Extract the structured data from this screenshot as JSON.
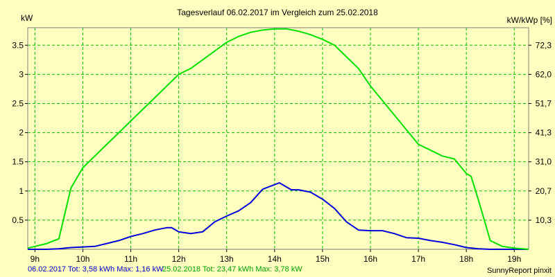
{
  "chart_data": {
    "type": "line",
    "title": "Tagesverlauf 06.02.2017 im Vergleich zum 25.02.2018",
    "ylabel_left": "kW",
    "ylabel_right": "kW/kWp [%]",
    "ylim": [
      0,
      3.8
    ],
    "xlim": [
      8.85,
      19.3
    ],
    "x_ticks": [
      {
        "value": 9,
        "label": "9h"
      },
      {
        "value": 10,
        "label": "10h"
      },
      {
        "value": 11,
        "label": "11h"
      },
      {
        "value": 12,
        "label": "12h"
      },
      {
        "value": 13,
        "label": "13h"
      },
      {
        "value": 14,
        "label": "14h"
      },
      {
        "value": 15,
        "label": "15h"
      },
      {
        "value": 16,
        "label": "16h"
      },
      {
        "value": 17,
        "label": "17h"
      },
      {
        "value": 18,
        "label": "18h"
      },
      {
        "value": 19,
        "label": "19h"
      }
    ],
    "y_ticks_left": [
      {
        "value": 0.5,
        "label": "0.5"
      },
      {
        "value": 1,
        "label": "1"
      },
      {
        "value": 1.5,
        "label": "1.5"
      },
      {
        "value": 2,
        "label": "2"
      },
      {
        "value": 2.5,
        "label": "2.5"
      },
      {
        "value": 3,
        "label": "3"
      },
      {
        "value": 3.5,
        "label": "3.5"
      }
    ],
    "y_ticks_right": [
      {
        "value": 0.5,
        "label": "10,3"
      },
      {
        "value": 1,
        "label": "20,7"
      },
      {
        "value": 1.5,
        "label": "31,0"
      },
      {
        "value": 2,
        "label": "41,3"
      },
      {
        "value": 2.5,
        "label": "51,7"
      },
      {
        "value": 3,
        "label": "62,0"
      },
      {
        "value": 3.5,
        "label": "72,3"
      }
    ],
    "grid": true,
    "series": [
      {
        "color": "#0000dd",
        "points": [
          [
            8.85,
            0
          ],
          [
            9.25,
            0.0
          ],
          [
            9.5,
            0.01
          ],
          [
            9.75,
            0.03
          ],
          [
            10.0,
            0.04
          ],
          [
            10.25,
            0.05
          ],
          [
            10.5,
            0.1
          ],
          [
            10.75,
            0.15
          ],
          [
            11.0,
            0.22
          ],
          [
            11.25,
            0.27
          ],
          [
            11.5,
            0.33
          ],
          [
            11.75,
            0.37
          ],
          [
            11.85,
            0.37
          ],
          [
            12.0,
            0.3
          ],
          [
            12.25,
            0.27
          ],
          [
            12.5,
            0.3
          ],
          [
            12.75,
            0.47
          ],
          [
            13.0,
            0.57
          ],
          [
            13.25,
            0.66
          ],
          [
            13.5,
            0.8
          ],
          [
            13.75,
            1.03
          ],
          [
            14.1,
            1.14
          ],
          [
            14.35,
            1.02
          ],
          [
            14.5,
            1.02
          ],
          [
            14.75,
            0.98
          ],
          [
            15.0,
            0.86
          ],
          [
            15.25,
            0.7
          ],
          [
            15.5,
            0.47
          ],
          [
            15.75,
            0.33
          ],
          [
            16.0,
            0.32
          ],
          [
            16.25,
            0.32
          ],
          [
            16.5,
            0.27
          ],
          [
            16.75,
            0.2
          ],
          [
            17.0,
            0.19
          ],
          [
            17.25,
            0.15
          ],
          [
            17.5,
            0.12
          ],
          [
            17.75,
            0.08
          ],
          [
            18.0,
            0.03
          ],
          [
            18.25,
            0.01
          ],
          [
            18.5,
            0
          ],
          [
            19.3,
            0
          ]
        ]
      },
      {
        "color": "#00e000",
        "points": [
          [
            8.85,
            0.02
          ],
          [
            9.0,
            0.05
          ],
          [
            9.25,
            0.1
          ],
          [
            9.5,
            0.18
          ],
          [
            9.75,
            1.05
          ],
          [
            10.0,
            1.4
          ],
          [
            10.25,
            1.6
          ],
          [
            10.5,
            1.8
          ],
          [
            10.75,
            2.0
          ],
          [
            11.0,
            2.2
          ],
          [
            11.25,
            2.4
          ],
          [
            11.5,
            2.6
          ],
          [
            11.75,
            2.8
          ],
          [
            12.0,
            3.0
          ],
          [
            12.25,
            3.1
          ],
          [
            12.5,
            3.25
          ],
          [
            12.75,
            3.4
          ],
          [
            13.0,
            3.55
          ],
          [
            13.25,
            3.65
          ],
          [
            13.5,
            3.72
          ],
          [
            13.75,
            3.76
          ],
          [
            14.0,
            3.78
          ],
          [
            14.25,
            3.78
          ],
          [
            14.5,
            3.74
          ],
          [
            14.75,
            3.68
          ],
          [
            15.0,
            3.6
          ],
          [
            15.25,
            3.5
          ],
          [
            15.5,
            3.3
          ],
          [
            15.75,
            3.1
          ],
          [
            16.0,
            2.8
          ],
          [
            16.25,
            2.55
          ],
          [
            16.5,
            2.3
          ],
          [
            16.75,
            2.05
          ],
          [
            17.0,
            1.8
          ],
          [
            17.25,
            1.7
          ],
          [
            17.5,
            1.6
          ],
          [
            17.75,
            1.55
          ],
          [
            18.0,
            1.3
          ],
          [
            18.1,
            1.25
          ],
          [
            18.25,
            0.85
          ],
          [
            18.5,
            0.15
          ],
          [
            18.75,
            0.05
          ],
          [
            19.0,
            0.02
          ],
          [
            19.3,
            0
          ]
        ]
      }
    ]
  },
  "footer": {
    "series1": "06.02.2017 Tot: 3,58 kWh Max: 1,16 kW",
    "series2": "25.02.2018 Tot: 23,47 kWh Max: 3,78 kW",
    "credit": "SunnyReport pinxit"
  }
}
